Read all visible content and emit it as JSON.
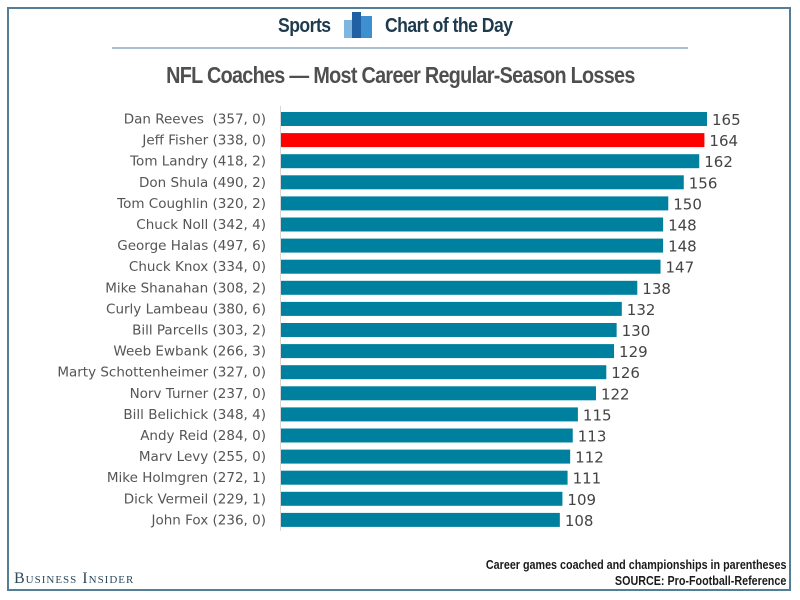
{
  "header": {
    "section": "Sports",
    "series": "Chart of the Day",
    "icon": "bar-chart-icon"
  },
  "footer": {
    "note": "Career games coached and championships in parentheses",
    "source": "SOURCE: Pro-Football-Reference",
    "brand": "Business Insider"
  },
  "colors": {
    "bar": "#00809f",
    "highlight": "#ff0000",
    "frame": "#527f95"
  },
  "chart_data": {
    "type": "bar",
    "orientation": "horizontal",
    "title": "NFL Coaches — Most Career Regular-Season Losses",
    "xlabel": "",
    "ylabel": "",
    "xlim": [
      0,
      165
    ],
    "grid": false,
    "legend": "none",
    "highlighted_category": "Jeff Fisher",
    "categories": [
      "Dan Reeves  (357, 0)",
      "Jeff Fisher (338, 0)",
      "Tom Landry (418, 2)",
      "Don Shula (490, 2)",
      "Tom Coughlin (320, 2)",
      "Chuck Noll (342, 4)",
      "George Halas (497, 6)",
      "Chuck Knox (334, 0)",
      "Mike Shanahan (308, 2)",
      "Curly Lambeau (380, 6)",
      "Bill Parcells (303, 2)",
      "Weeb Ewbank (266, 3)",
      "Marty Schottenheimer (327, 0)",
      "Norv Turner (237, 0)",
      "Bill Belichick (348, 4)",
      "Andy Reid (284, 0)",
      "Marv Levy (255, 0)",
      "Mike Holmgren (272, 1)",
      "Dick Vermeil (229, 1)",
      "John Fox (236, 0)"
    ],
    "coaches": [
      {
        "name": "Dan Reeves",
        "games": 357,
        "championships": 0
      },
      {
        "name": "Jeff Fisher",
        "games": 338,
        "championships": 0
      },
      {
        "name": "Tom Landry",
        "games": 418,
        "championships": 2
      },
      {
        "name": "Don Shula",
        "games": 490,
        "championships": 2
      },
      {
        "name": "Tom Coughlin",
        "games": 320,
        "championships": 2
      },
      {
        "name": "Chuck Noll",
        "games": 342,
        "championships": 4
      },
      {
        "name": "George Halas",
        "games": 497,
        "championships": 6
      },
      {
        "name": "Chuck Knox",
        "games": 334,
        "championships": 0
      },
      {
        "name": "Mike Shanahan",
        "games": 308,
        "championships": 2
      },
      {
        "name": "Curly Lambeau",
        "games": 380,
        "championships": 6
      },
      {
        "name": "Bill Parcells",
        "games": 303,
        "championships": 2
      },
      {
        "name": "Weeb Ewbank",
        "games": 266,
        "championships": 3
      },
      {
        "name": "Marty Schottenheimer",
        "games": 327,
        "championships": 0
      },
      {
        "name": "Norv Turner",
        "games": 237,
        "championships": 0
      },
      {
        "name": "Bill Belichick",
        "games": 348,
        "championships": 4
      },
      {
        "name": "Andy Reid",
        "games": 284,
        "championships": 0
      },
      {
        "name": "Marv Levy",
        "games": 255,
        "championships": 0
      },
      {
        "name": "Mike Holmgren",
        "games": 272,
        "championships": 1
      },
      {
        "name": "Dick Vermeil",
        "games": 229,
        "championships": 1
      },
      {
        "name": "John Fox",
        "games": 236,
        "championships": 0
      }
    ],
    "values": [
      165,
      164,
      162,
      156,
      150,
      148,
      148,
      147,
      138,
      132,
      130,
      129,
      126,
      122,
      115,
      113,
      112,
      111,
      109,
      108
    ],
    "data_labels": [
      "165",
      "164",
      "162",
      "156",
      "150",
      "148",
      "148",
      "147",
      "138",
      "132",
      "130",
      "129",
      "126",
      "122",
      "115",
      "113",
      "112",
      "111",
      "109",
      "108"
    ]
  }
}
